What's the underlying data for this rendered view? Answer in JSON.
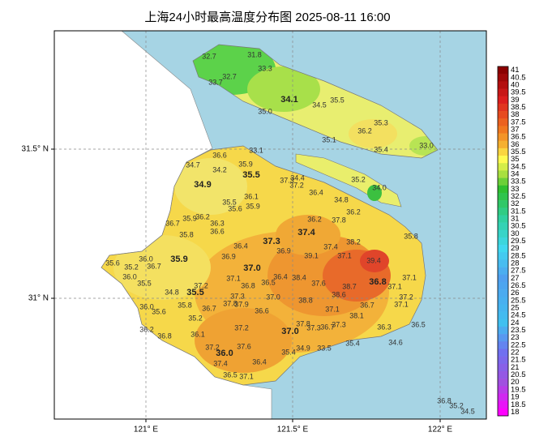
{
  "title": "上海24小时最高温度分布图 2025-08-11 16:00",
  "axes": {
    "x_labels": [
      "121° E",
      "121.5° E",
      "122° E"
    ],
    "y_labels": [
      "31.5° N",
      "31° N"
    ]
  },
  "colorbar": {
    "labels": [
      "41",
      "40.5",
      "40",
      "39.5",
      "39",
      "38.5",
      "38",
      "37.5",
      "37",
      "36.5",
      "36",
      "35.5",
      "35",
      "34.5",
      "34",
      "33.5",
      "33",
      "32.5",
      "32",
      "31.5",
      "31",
      "30.5",
      "30",
      "29.5",
      "29",
      "28.5",
      "28",
      "27.5",
      "27",
      "26.5",
      "26",
      "25.5",
      "25",
      "24.5",
      "24",
      "23.5",
      "23",
      "22.5",
      "22",
      "21.5",
      "21",
      "20.5",
      "20",
      "19.5",
      "19",
      "18.5",
      "18"
    ]
  },
  "districts": [
    "34.1",
    "34.9",
    "35.5",
    "37.4",
    "37.3",
    "35.9",
    "37.0",
    "36.8",
    "35.5",
    "37.0",
    "36.0"
  ],
  "stations": [
    "32.7",
    "31.8",
    "33.3",
    "32.7",
    "33.7",
    "35.0",
    "34.5",
    "35.5",
    "36.2",
    "35.3",
    "35.1",
    "35.4",
    "33.0",
    "33.1",
    "35.2",
    "34.0",
    "36.6",
    "35.9",
    "34.7",
    "34.2",
    "34.4",
    "37.3",
    "37.2",
    "36.4",
    "34.8",
    "36.1",
    "35.5",
    "35.6",
    "35.9",
    "36.2",
    "37.8",
    "36.2",
    "36.7",
    "35.9",
    "36.2",
    "36.3",
    "36.6",
    "35.8",
    "35.8",
    "36.4",
    "37.4",
    "38.2",
    "39.4",
    "39.1",
    "37.1",
    "36.9",
    "35.6",
    "35.2",
    "36.7",
    "36.0",
    "36.0",
    "36.9",
    "35.5",
    "34.8",
    "37.2",
    "37.1",
    "36.8",
    "36.5",
    "36.4",
    "38.4",
    "37.6",
    "38.7",
    "37.1",
    "37.1",
    "38.6",
    "37.2",
    "36.7",
    "37.1",
    "37.0",
    "37.3",
    "35.8",
    "36.7",
    "37.8",
    "37.9",
    "36.6",
    "38.8",
    "37.1",
    "38.1",
    "36.3",
    "36.5",
    "36.0",
    "35.6",
    "35.2",
    "37.8",
    "37.3",
    "36.7",
    "37.3",
    "36.2",
    "36.8",
    "36.1",
    "37.2",
    "37.2",
    "37.6",
    "37.4",
    "36.4",
    "35.4",
    "34.6",
    "35.4",
    "34.9",
    "33.5",
    "36.5",
    "37.1",
    "36.8",
    "35.2",
    "34.5"
  ]
}
